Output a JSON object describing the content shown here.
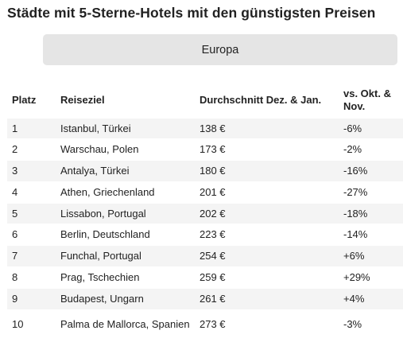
{
  "title": "Städte mit 5-Sterne-Hotels mit den günstigsten Preisen",
  "region_tab": {
    "label": "Europa"
  },
  "table": {
    "headers": {
      "rank": "Platz",
      "destination": "Reiseziel",
      "average": "Durchschnitt Dez. & Jan.",
      "change": "vs. Okt. & Nov."
    },
    "rows": [
      {
        "rank": "1",
        "destination": "Istanbul, Türkei",
        "average": "138 €",
        "change": "-6%"
      },
      {
        "rank": "2",
        "destination": "Warschau, Polen",
        "average": "173 €",
        "change": "-2%"
      },
      {
        "rank": "3",
        "destination": "Antalya, Türkei",
        "average": "180 €",
        "change": "-16%"
      },
      {
        "rank": "4",
        "destination": "Athen, Griechenland",
        "average": "201 €",
        "change": "-27%"
      },
      {
        "rank": "5",
        "destination": "Lissabon, Portugal",
        "average": "202 €",
        "change": "-18%"
      },
      {
        "rank": "6",
        "destination": "Berlin, Deutschland",
        "average": "223 €",
        "change": "-14%"
      },
      {
        "rank": "7",
        "destination": "Funchal, Portugal",
        "average": "254 €",
        "change": "+6%"
      },
      {
        "rank": "8",
        "destination": "Prag, Tschechien",
        "average": "259 €",
        "change": "+29%"
      },
      {
        "rank": "9",
        "destination": "Budapest, Ungarn",
        "average": "261 €",
        "change": "+4%"
      },
      {
        "rank": "10",
        "destination": "Palma de Mallorca, Spanien",
        "average": "273 €",
        "change": "-3%"
      }
    ]
  },
  "colors": {
    "text": "#222222",
    "tab_background": "#e5e5e5",
    "row_stripe": "#f4f4f4",
    "background": "#ffffff"
  }
}
